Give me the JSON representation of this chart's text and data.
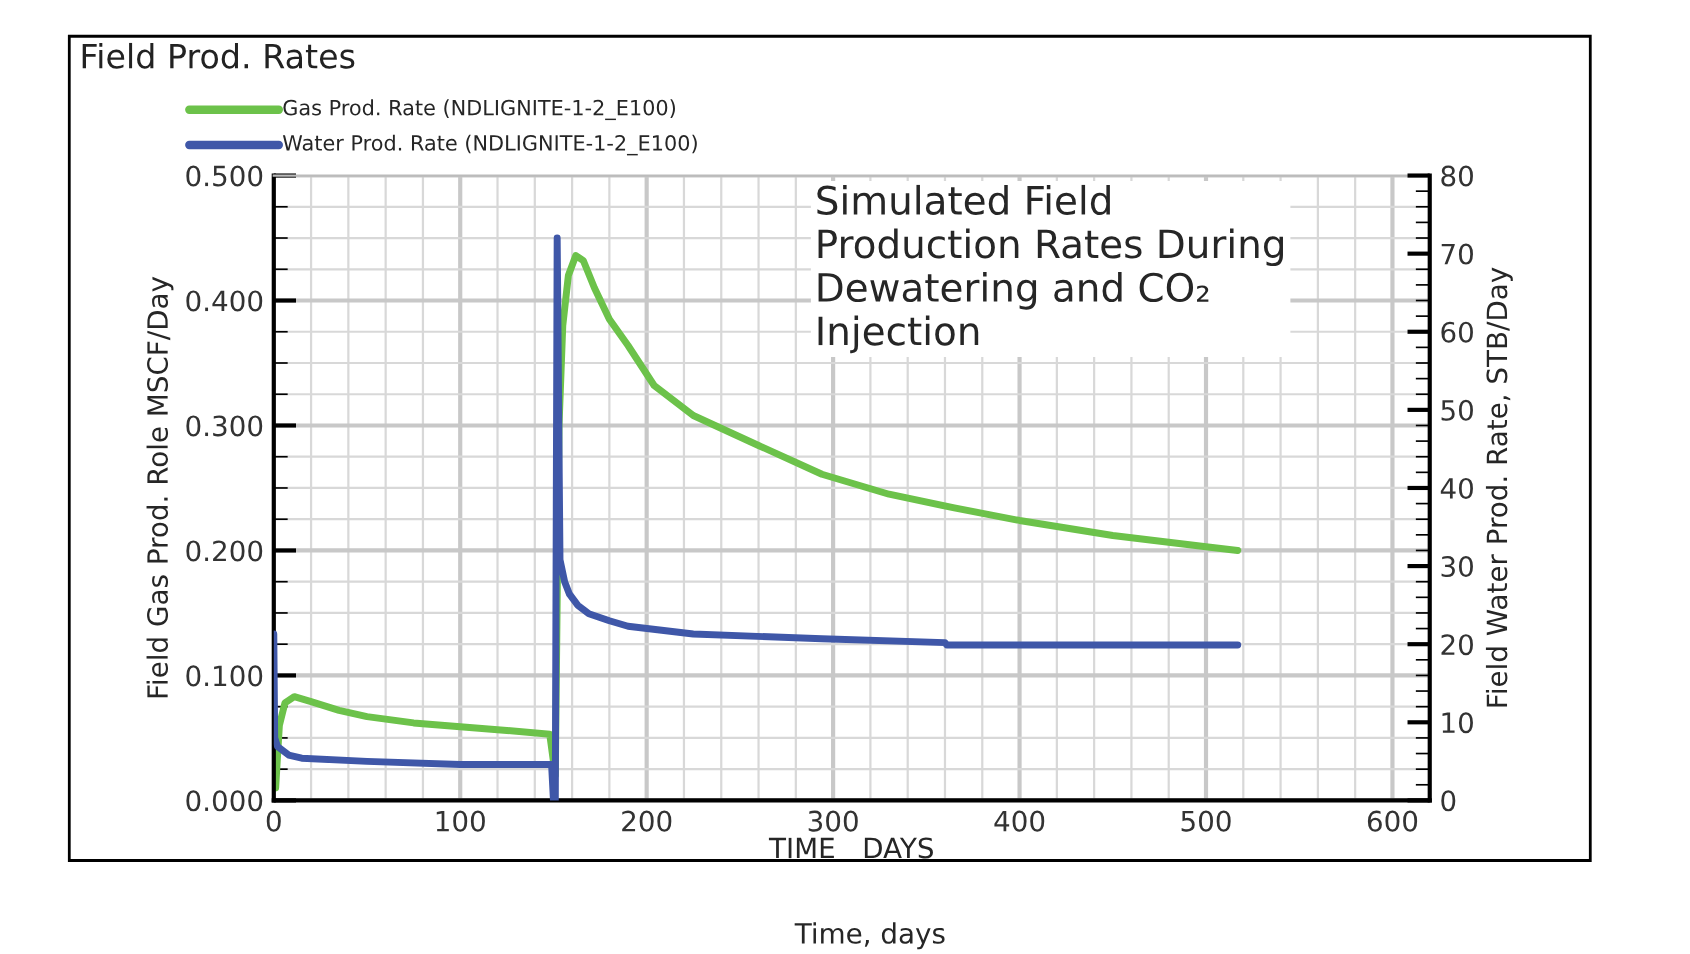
{
  "chart_data": {
    "type": "line",
    "title": "Field Prod. Rates",
    "xlabel": "TIME   DAYS",
    "ylabel": "Field Gas Prod. Role MSCF/Day",
    "y2label": "Field Water Prod. Rate, STB/Day",
    "annotations": [
      "Simulated Field\nProduction Rates During\nDewatering and CO₂\nInjection",
      "Time, days"
    ],
    "xlim": [
      0,
      620
    ],
    "xticks": [
      0,
      100,
      200,
      300,
      400,
      500,
      600
    ],
    "ylim": [
      0,
      0.5
    ],
    "yticks": [
      {
        "value": 0,
        "label": "0.000"
      },
      {
        "value": 0.1,
        "label": "0.100"
      },
      {
        "value": 0.2,
        "label": "0.200"
      },
      {
        "value": 0.3,
        "label": "0.300"
      },
      {
        "value": 0.4,
        "label": "0.400"
      },
      {
        "value": 0.5,
        "label": "0.500"
      }
    ],
    "y2lim": [
      0,
      80
    ],
    "y2ticks": [
      0,
      10,
      20,
      30,
      40,
      50,
      60,
      70,
      80
    ],
    "grid": true,
    "legend": "top left",
    "line_style": "solid",
    "marker": "none",
    "series": [
      {
        "name": "Gas Prod. Rate (NDLIGNITE-1-2_E100)",
        "color": "#6cc24a",
        "x": [
          1,
          3,
          6,
          11,
          20,
          35,
          50,
          75,
          100,
          125,
          148,
          151,
          153,
          155,
          158,
          162,
          166,
          172,
          180,
          190,
          204,
          225,
          260,
          294,
          330,
          365,
          400,
          450,
          500,
          517
        ],
        "values": [
          0.01,
          0.06,
          0.078,
          0.083,
          0.079,
          0.072,
          0.067,
          0.062,
          0.059,
          0.056,
          0.053,
          0.02,
          0.3,
          0.38,
          0.42,
          0.436,
          0.432,
          0.41,
          0.385,
          0.364,
          0.332,
          0.308,
          0.284,
          0.261,
          0.245,
          0.234,
          0.224,
          0.212,
          0.203,
          0.2
        ]
      },
      {
        "name": "Water Prod. Rate (NDLIGNITE-1-2_E100)",
        "color": "#3f57a8",
        "axis": "y2",
        "x": [
          0,
          0.5,
          2,
          8,
          15,
          50,
          100,
          149,
          150,
          151,
          152,
          153.5,
          156,
          158.6,
          163,
          169,
          180,
          190,
          225,
          294,
          360,
          361,
          450,
          517
        ],
        "values": [
          21.3,
          8,
          6.9,
          5.8,
          5.4,
          5.0,
          4.6,
          4.6,
          0,
          0,
          72,
          30.8,
          28,
          26.4,
          25,
          23.9,
          23,
          22.3,
          21.3,
          20.7,
          20.2,
          19.9,
          19.9,
          19.9
        ]
      }
    ]
  }
}
